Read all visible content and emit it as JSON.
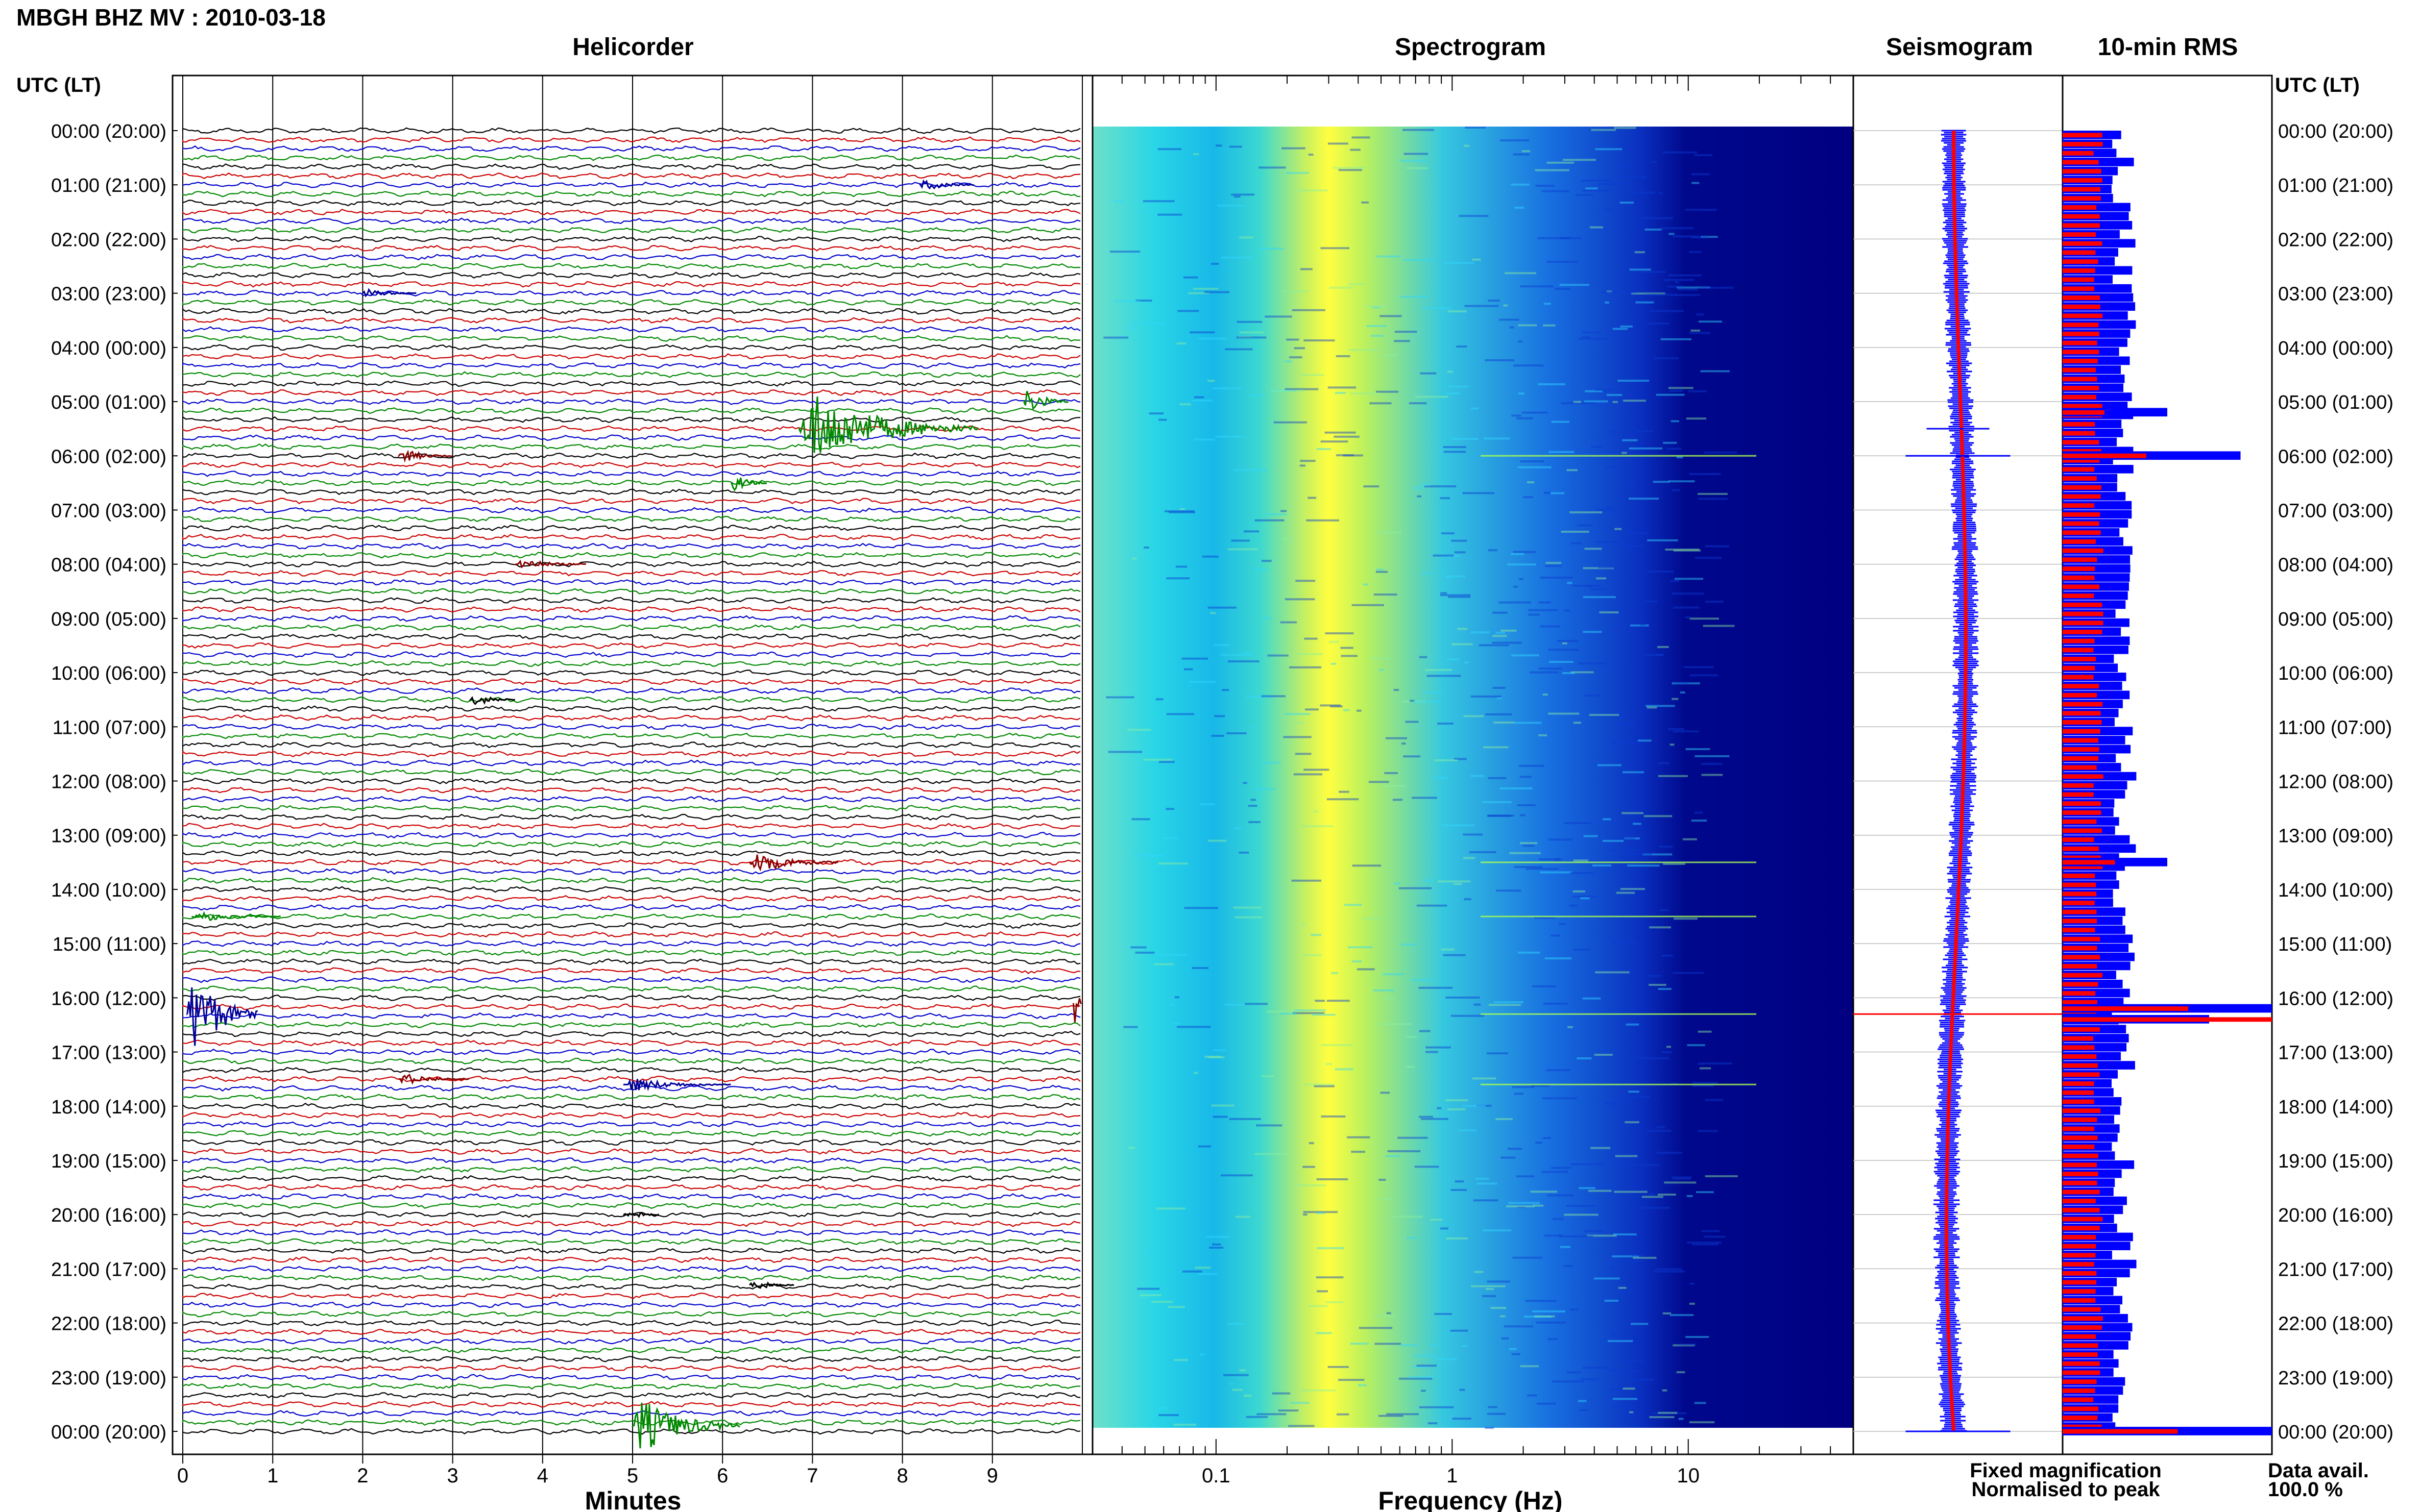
{
  "header": {
    "station_title": "MBGH BHZ MV : 2010-03-18",
    "left_axis_label": "UTC (LT)",
    "right_axis_label": "UTC (LT)"
  },
  "panels": {
    "helicorder": {
      "title": "Helicorder",
      "xlabel": "Minutes"
    },
    "spectrogram": {
      "title": "Spectrogram",
      "xlabel": "Frequency (Hz)"
    },
    "seismogram": {
      "title": "Seismogram"
    },
    "rms": {
      "title": "10-min RMS"
    }
  },
  "legend": {
    "fixed": "Fixed magnification",
    "normalised": "Normalised to peak",
    "data_avail_label": "Data avail.",
    "data_avail_value": "100.0 %",
    "fixed_color": "#0000ff",
    "normalised_color": "#ff0000"
  },
  "colors": {
    "trace_cycle": [
      "#000000",
      "#cc0000",
      "#0000cc",
      "#008800"
    ],
    "event_green": "#008800",
    "event_red": "#880000",
    "event_blue": "#000099",
    "spectrogram_low": "#00008a",
    "spectrogram_high": "#ffff40"
  },
  "chart_data": {
    "type": "helicorder",
    "hour_labels": [
      "00:00 (20:00)",
      "01:00 (21:00)",
      "02:00 (22:00)",
      "03:00 (23:00)",
      "04:00 (00:00)",
      "05:00 (01:00)",
      "06:00 (02:00)",
      "07:00 (03:00)",
      "08:00 (04:00)",
      "09:00 (05:00)",
      "10:00 (06:00)",
      "11:00 (07:00)",
      "12:00 (08:00)",
      "13:00 (09:00)",
      "14:00 (10:00)",
      "15:00 (11:00)",
      "16:00 (12:00)",
      "17:00 (13:00)",
      "18:00 (14:00)",
      "19:00 (15:00)",
      "20:00 (16:00)",
      "21:00 (17:00)",
      "22:00 (18:00)",
      "23:00 (19:00)",
      "00:00 (20:00)"
    ],
    "minutes_ticks": [
      "0",
      "1",
      "2",
      "3",
      "4",
      "5",
      "6",
      "7",
      "8",
      "9"
    ],
    "frequency_ticks": [
      "0.1",
      "1",
      "10"
    ],
    "frequency_range_hz": [
      0.03,
      50
    ],
    "minutes_range": [
      0,
      10
    ],
    "lines_per_hour": 6,
    "helicorder_events": [
      {
        "hour": 5.0,
        "minute": 9.35,
        "color": "green",
        "amp": 1.2,
        "dur": 0.5
      },
      {
        "hour": 5.5,
        "minute": 6.85,
        "color": "green",
        "amp": 3.2,
        "dur": 2.0
      },
      {
        "hour": 6.0,
        "minute": 2.4,
        "color": "red",
        "amp": 0.6,
        "dur": 0.6
      },
      {
        "hour": 6.5,
        "minute": 6.1,
        "color": "green",
        "amp": 0.9,
        "dur": 0.4
      },
      {
        "hour": 1.0,
        "minute": 8.2,
        "color": "blue",
        "amp": 0.5,
        "dur": 0.6
      },
      {
        "hour": 3.0,
        "minute": 2.0,
        "color": "blue",
        "amp": 0.4,
        "dur": 0.6
      },
      {
        "hour": 8.0,
        "minute": 3.7,
        "color": "red",
        "amp": 0.5,
        "dur": 0.8
      },
      {
        "hour": 10.5,
        "minute": 3.2,
        "color": "black",
        "amp": 0.6,
        "dur": 0.5
      },
      {
        "hour": 13.5,
        "minute": 6.3,
        "color": "red",
        "amp": 1.0,
        "dur": 1.0
      },
      {
        "hour": 14.5,
        "minute": 0.1,
        "color": "green",
        "amp": 0.5,
        "dur": 1.0
      },
      {
        "hour": 16.3,
        "minute": 0.05,
        "color": "blue",
        "amp": 4.0,
        "dur": 0.8
      },
      {
        "hour": 16.1,
        "minute": 9.9,
        "color": "red",
        "amp": 3.0,
        "dur": 0.1
      },
      {
        "hour": 17.5,
        "minute": 2.4,
        "color": "red",
        "amp": 0.5,
        "dur": 0.8
      },
      {
        "hour": 17.6,
        "minute": 4.9,
        "color": "blue",
        "amp": 0.6,
        "dur": 1.2
      },
      {
        "hour": 20.0,
        "minute": 4.9,
        "color": "black",
        "amp": 0.6,
        "dur": 0.4
      },
      {
        "hour": 21.3,
        "minute": 6.3,
        "color": "black",
        "amp": 0.5,
        "dur": 0.5
      },
      {
        "hour": 23.9,
        "minute": 5.0,
        "color": "green",
        "amp": 2.5,
        "dur": 1.2
      }
    ],
    "seismogram_peaks": [
      {
        "hour": 5.5,
        "value": 0.3
      },
      {
        "hour": 6.0,
        "value": 0.5
      },
      {
        "hour": 16.3,
        "value": 1.0
      },
      {
        "hour": 24.0,
        "value": 0.5
      }
    ],
    "rms_spikes": [
      {
        "hour": 5.2,
        "blue": 0.5,
        "red": 0.2
      },
      {
        "hour": 6.0,
        "blue": 0.85,
        "red": 0.4
      },
      {
        "hour": 13.5,
        "blue": 0.5,
        "red": 0.25
      },
      {
        "hour": 16.2,
        "blue": 1.0,
        "red": 0.6
      },
      {
        "hour": 16.4,
        "blue": 0.7,
        "red": 1.0
      },
      {
        "hour": 24.0,
        "blue": 1.0,
        "red": 0.55
      }
    ]
  }
}
